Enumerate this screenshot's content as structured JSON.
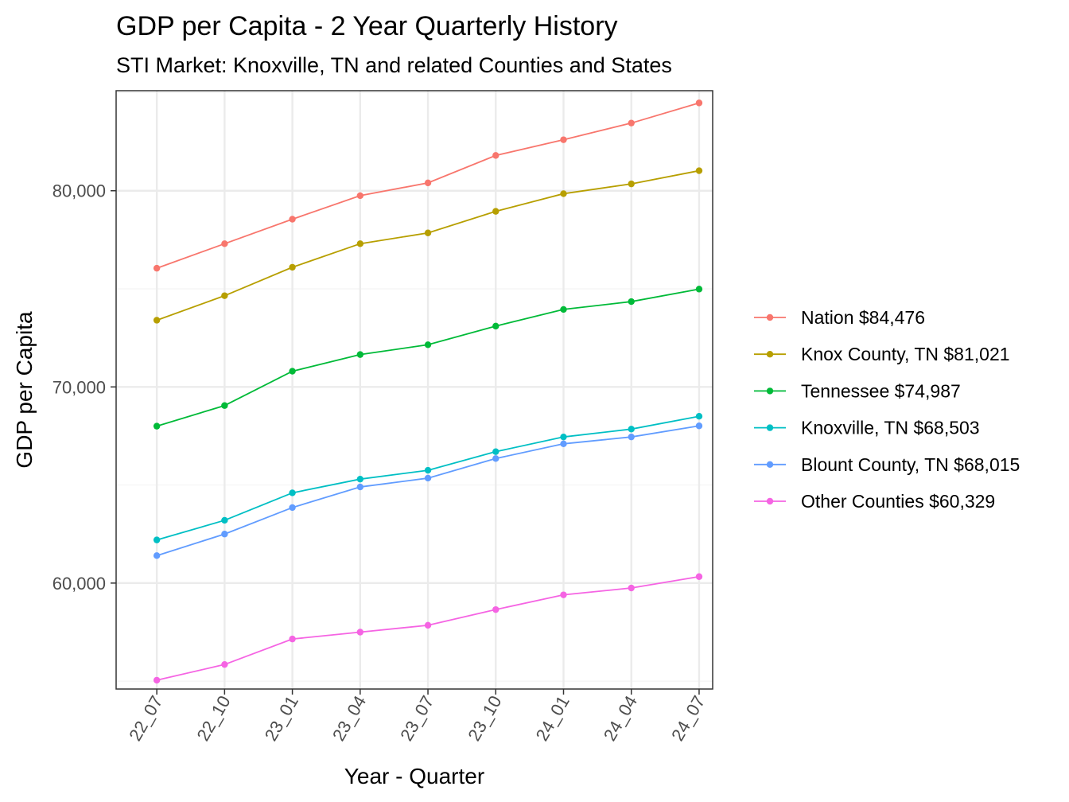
{
  "chart_data": {
    "type": "line",
    "title": "GDP per Capita - 2 Year Quarterly History",
    "subtitle": "STI Market: Knoxville, TN and related Counties and States",
    "xlabel": "Year - Quarter",
    "ylabel": "GDP per Capita",
    "categories": [
      "22_07",
      "22_10",
      "23_01",
      "23_04",
      "23_07",
      "23_10",
      "24_01",
      "24_04",
      "24_07"
    ],
    "ylim": [
      54600,
      85100
    ],
    "yticks": [
      60000,
      70000,
      80000
    ],
    "ytick_labels": [
      "60,000",
      "70,000",
      "80,000"
    ],
    "grid": true,
    "legend_position": "right",
    "series": [
      {
        "name": "Nation $84,476",
        "color": "#F8766D",
        "values": [
          76050,
          77300,
          78550,
          79750,
          80400,
          81800,
          82600,
          83450,
          84476
        ]
      },
      {
        "name": "Knox County, TN $81,021",
        "color": "#B79F00",
        "values": [
          73400,
          74650,
          76100,
          77300,
          77850,
          78950,
          79850,
          80350,
          81021
        ]
      },
      {
        "name": "Tennessee $74,987",
        "color": "#00BA38",
        "values": [
          68000,
          69050,
          70800,
          71650,
          72150,
          73100,
          73950,
          74350,
          74987
        ]
      },
      {
        "name": "Knoxville, TN $68,503",
        "color": "#00BFC4",
        "values": [
          62200,
          63200,
          64600,
          65300,
          65750,
          66700,
          67450,
          67850,
          68503
        ]
      },
      {
        "name": "Blount County, TN $68,015",
        "color": "#619CFF",
        "values": [
          61400,
          62500,
          63850,
          64900,
          65350,
          66350,
          67100,
          67450,
          68015
        ]
      },
      {
        "name": "Other Counties $60,329",
        "color": "#F564E3",
        "values": [
          55050,
          55850,
          57150,
          57500,
          57850,
          58650,
          59400,
          59750,
          60329
        ]
      }
    ]
  }
}
